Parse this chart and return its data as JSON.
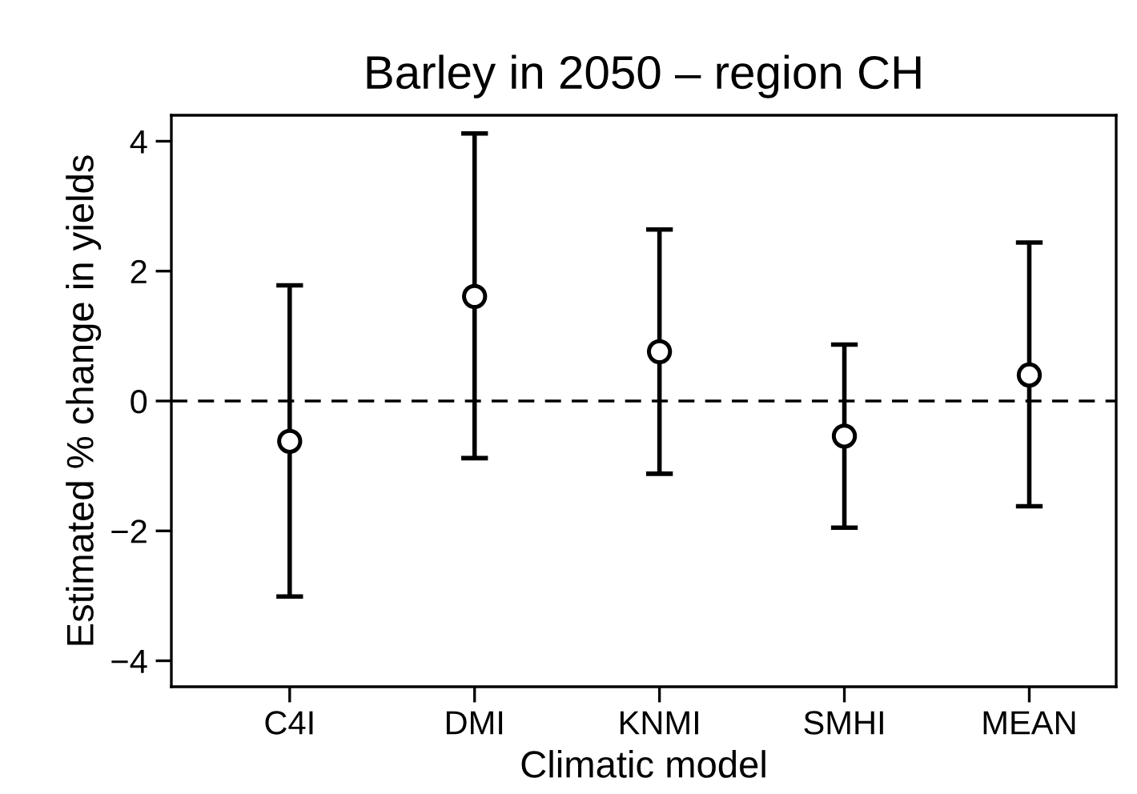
{
  "chart_data": {
    "type": "scatter",
    "title": "Barley in 2050 – region CH",
    "xlabel": "Climatic model",
    "ylabel": "Estimated % change in yields",
    "categories": [
      "C4I",
      "DMI",
      "KNMI",
      "SMHI",
      "MEAN"
    ],
    "series": [
      {
        "color": "#000000",
        "values": [
          -0.62,
          1.61,
          0.76,
          -0.54,
          0.4
        ],
        "errors": [
          [
            -3.01,
            1.78
          ],
          [
            -0.88,
            4.12
          ],
          [
            -1.12,
            2.64
          ],
          [
            -1.95,
            0.87
          ],
          [
            -1.62,
            2.44
          ]
        ]
      }
    ],
    "marker": "circle",
    "ylim": [
      -4.4,
      4.4
    ],
    "yticks": [
      {
        "value": -4,
        "label": "−4"
      },
      {
        "value": -2,
        "label": "−2"
      },
      0,
      2,
      4
    ],
    "ref_lines": [
      {
        "axis": "y",
        "value": 0,
        "color": "#000000",
        "line_style": "dashed"
      }
    ],
    "grid": false,
    "legend": false
  }
}
